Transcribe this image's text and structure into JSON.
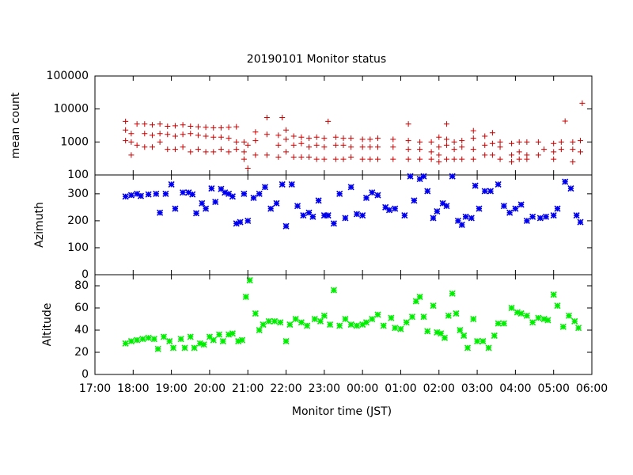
{
  "chart_data": [
    {
      "type": "scatter",
      "title": "20190101 Monitor status",
      "ylabel": "mean count",
      "color": "#cc0000",
      "marker": "+",
      "log_y": true,
      "xlim": [
        17,
        30
      ],
      "ylim": [
        100,
        100000
      ],
      "yticks": [
        100,
        1000,
        10000,
        100000
      ],
      "x": [
        17.8,
        17.8,
        17.8,
        17.95,
        17.95,
        17.95,
        18.1,
        18.1,
        18.3,
        18.3,
        18.3,
        18.5,
        18.5,
        18.5,
        18.7,
        18.7,
        18.7,
        18.9,
        18.9,
        18.9,
        19.1,
        19.1,
        19.1,
        19.3,
        19.3,
        19.3,
        19.5,
        19.5,
        19.5,
        19.7,
        19.7,
        19.7,
        19.9,
        19.9,
        19.9,
        20.1,
        20.1,
        20.1,
        20.3,
        20.3,
        20.3,
        20.5,
        20.5,
        20.5,
        20.7,
        20.7,
        20.7,
        20.9,
        20.9,
        20.9,
        21.0,
        21.0,
        21.2,
        21.2,
        21.2,
        21.5,
        21.5,
        21.5,
        21.8,
        21.8,
        21.8,
        21.9,
        22.0,
        22.0,
        22.0,
        22.2,
        22.2,
        22.2,
        22.4,
        22.4,
        22.4,
        22.6,
        22.6,
        22.6,
        22.8,
        22.8,
        22.8,
        23.0,
        23.0,
        23.0,
        23.1,
        23.3,
        23.3,
        23.3,
        23.5,
        23.5,
        23.5,
        23.7,
        23.7,
        23.7,
        24.0,
        24.0,
        24.0,
        24.2,
        24.2,
        24.2,
        24.4,
        24.4,
        24.4,
        24.8,
        24.8,
        24.8,
        25.2,
        25.2,
        25.2,
        25.2,
        25.5,
        25.5,
        25.5,
        25.8,
        25.8,
        25.8,
        26.0,
        26.0,
        26.0,
        26.0,
        26.2,
        26.2,
        26.2,
        26.2,
        26.4,
        26.4,
        26.4,
        26.6,
        26.6,
        26.6,
        26.9,
        26.9,
        26.9,
        26.9,
        27.2,
        27.2,
        27.2,
        27.4,
        27.4,
        27.4,
        27.6,
        27.6,
        27.6,
        27.9,
        27.9,
        27.9,
        28.1,
        28.1,
        28.1,
        28.3,
        28.3,
        28.3,
        28.6,
        28.6,
        28.75,
        29.0,
        29.0,
        29.0,
        29.2,
        29.2,
        29.3,
        29.5,
        29.5,
        29.5,
        29.7,
        29.7,
        29.75
      ],
      "values": [
        4200,
        2300,
        1100,
        1800,
        1000,
        400,
        3500,
        800,
        3500,
        1800,
        700,
        3300,
        1600,
        700,
        3500,
        1800,
        1000,
        3000,
        1700,
        600,
        3100,
        1500,
        600,
        3300,
        1700,
        700,
        3000,
        1800,
        500,
        2900,
        1600,
        600,
        2800,
        1500,
        500,
        2700,
        1400,
        500,
        2700,
        1400,
        600,
        2800,
        1300,
        500,
        2900,
        1000,
        600,
        1000,
        500,
        300,
        800,
        160,
        2000,
        1100,
        400,
        5500,
        1700,
        400,
        1600,
        800,
        350,
        5500,
        2300,
        1200,
        500,
        1500,
        800,
        350,
        1400,
        900,
        350,
        1300,
        700,
        350,
        1400,
        800,
        300,
        1300,
        700,
        300,
        4200,
        1400,
        800,
        300,
        1300,
        800,
        300,
        1300,
        700,
        350,
        1200,
        700,
        300,
        1200,
        700,
        300,
        1300,
        700,
        300,
        1200,
        700,
        300,
        3500,
        1100,
        600,
        300,
        1000,
        600,
        300,
        1000,
        500,
        300,
        1400,
        700,
        400,
        250,
        3500,
        1200,
        800,
        300,
        1000,
        600,
        300,
        1100,
        700,
        300,
        2200,
        1300,
        600,
        300,
        1500,
        800,
        400,
        1900,
        900,
        400,
        1000,
        700,
        300,
        900,
        400,
        250,
        1000,
        500,
        300,
        1000,
        400,
        300,
        1000,
        400,
        600,
        900,
        500,
        300,
        1000,
        600,
        4300,
        1000,
        600,
        250,
        1100,
        500,
        15000
      ]
    },
    {
      "type": "scatter",
      "ylabel": "Azimuth",
      "color": "#0000ee",
      "marker": "x",
      "xlim": [
        17,
        30
      ],
      "ylim": [
        0,
        370
      ],
      "yticks": [
        0,
        100,
        200,
        300
      ],
      "x": [
        17.8,
        17.95,
        18.1,
        18.2,
        18.4,
        18.6,
        18.7,
        18.85,
        19.0,
        19.1,
        19.3,
        19.45,
        19.55,
        19.65,
        19.8,
        19.9,
        20.05,
        20.15,
        20.3,
        20.4,
        20.5,
        20.6,
        20.7,
        20.8,
        20.9,
        21.0,
        21.15,
        21.3,
        21.45,
        21.6,
        21.75,
        21.9,
        22.0,
        22.15,
        22.3,
        22.45,
        22.6,
        22.7,
        22.85,
        23.0,
        23.1,
        23.25,
        23.4,
        23.55,
        23.7,
        23.85,
        24.0,
        24.1,
        24.25,
        24.4,
        24.6,
        24.7,
        24.85,
        25.1,
        25.25,
        25.35,
        25.5,
        25.6,
        25.7,
        25.85,
        25.95,
        26.1,
        26.2,
        26.35,
        26.5,
        26.6,
        26.7,
        26.85,
        26.95,
        27.05,
        27.2,
        27.35,
        27.55,
        27.7,
        27.85,
        28.0,
        28.15,
        28.3,
        28.45,
        28.65,
        28.8,
        29.0,
        29.1,
        29.3,
        29.45,
        29.6,
        29.7
      ],
      "values": [
        290,
        295,
        300,
        292,
        298,
        300,
        230,
        300,
        335,
        245,
        305,
        305,
        298,
        228,
        265,
        245,
        320,
        270,
        318,
        305,
        300,
        290,
        190,
        195,
        300,
        200,
        285,
        300,
        325,
        245,
        265,
        335,
        180,
        335,
        255,
        220,
        230,
        215,
        275,
        220,
        220,
        190,
        300,
        210,
        325,
        225,
        220,
        285,
        305,
        295,
        250,
        240,
        245,
        220,
        365,
        275,
        355,
        365,
        310,
        210,
        235,
        265,
        255,
        365,
        200,
        185,
        215,
        210,
        330,
        245,
        310,
        310,
        335,
        255,
        230,
        245,
        260,
        200,
        215,
        210,
        215,
        220,
        245,
        345,
        320,
        220,
        195
      ]
    },
    {
      "type": "scatter",
      "ylabel": "Altitude",
      "xlabel": "Monitor time (JST)",
      "color": "#00ee00",
      "marker": "*",
      "xlim": [
        17,
        30
      ],
      "ylim": [
        0,
        90
      ],
      "yticks": [
        0,
        20,
        40,
        60,
        80
      ],
      "xticks": [
        {
          "value": 17,
          "label": "17:00"
        },
        {
          "value": 18,
          "label": "18:00"
        },
        {
          "value": 19,
          "label": "19:00"
        },
        {
          "value": 20,
          "label": "20:00"
        },
        {
          "value": 21,
          "label": "21:00"
        },
        {
          "value": 22,
          "label": "22:00"
        },
        {
          "value": 23,
          "label": "23:00"
        },
        {
          "value": 24,
          "label": "00:00"
        },
        {
          "value": 25,
          "label": "01:00"
        },
        {
          "value": 26,
          "label": "02:00"
        },
        {
          "value": 27,
          "label": "03:00"
        },
        {
          "value": 28,
          "label": "04:00"
        },
        {
          "value": 29,
          "label": "05:00"
        },
        {
          "value": 30,
          "label": "06:00"
        }
      ],
      "x": [
        17.8,
        17.95,
        18.1,
        18.25,
        18.4,
        18.55,
        18.65,
        18.8,
        18.95,
        19.05,
        19.25,
        19.35,
        19.5,
        19.6,
        19.75,
        19.85,
        20.0,
        20.1,
        20.25,
        20.35,
        20.5,
        20.6,
        20.75,
        20.85,
        20.95,
        21.05,
        21.2,
        21.3,
        21.4,
        21.55,
        21.7,
        21.85,
        22.0,
        22.1,
        22.25,
        22.4,
        22.55,
        22.75,
        22.9,
        23.0,
        23.15,
        23.25,
        23.4,
        23.55,
        23.7,
        23.85,
        24.0,
        24.1,
        24.25,
        24.4,
        24.55,
        24.75,
        24.85,
        25.0,
        25.15,
        25.3,
        25.4,
        25.5,
        25.6,
        25.7,
        25.85,
        25.95,
        26.05,
        26.15,
        26.25,
        26.35,
        26.45,
        26.55,
        26.65,
        26.75,
        26.9,
        27.0,
        27.15,
        27.3,
        27.45,
        27.55,
        27.7,
        27.9,
        28.05,
        28.15,
        28.3,
        28.45,
        28.6,
        28.75,
        28.85,
        29.0,
        29.1,
        29.25,
        29.4,
        29.55,
        29.65
      ],
      "values": [
        28,
        30,
        31,
        32,
        33,
        32,
        23,
        34,
        30,
        24,
        32,
        24,
        34,
        24,
        28,
        27,
        34,
        31,
        36,
        30,
        36,
        37,
        30,
        31,
        70,
        85,
        55,
        40,
        45,
        48,
        48,
        47,
        30,
        45,
        50,
        47,
        44,
        50,
        48,
        53,
        45,
        76,
        44,
        50,
        45,
        44,
        45,
        47,
        50,
        54,
        44,
        51,
        42,
        41,
        47,
        52,
        66,
        70,
        52,
        39,
        62,
        38,
        37,
        33,
        53,
        73,
        55,
        40,
        35,
        24,
        50,
        30,
        30,
        24,
        35,
        46,
        46,
        60,
        56,
        55,
        53,
        47,
        51,
        50,
        49,
        72,
        62,
        43,
        53,
        48,
        42
      ]
    }
  ]
}
